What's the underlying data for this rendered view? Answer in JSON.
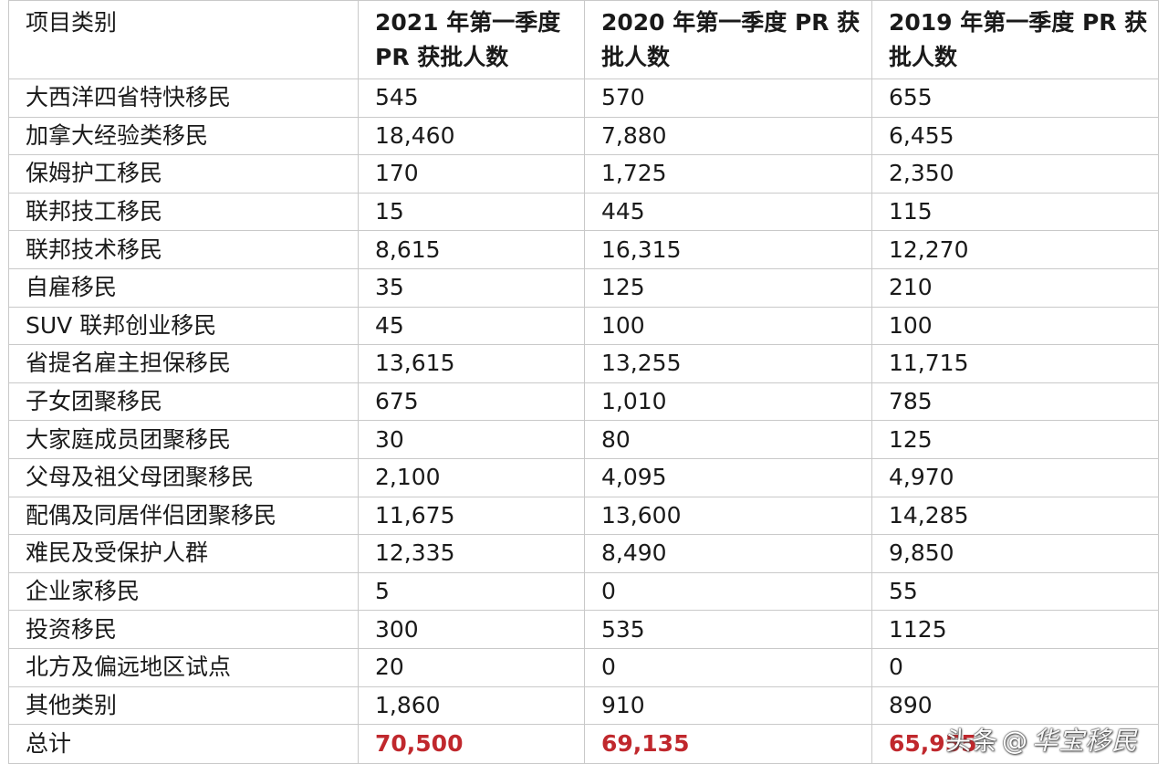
{
  "table": {
    "headers": [
      "项目类别",
      "2021 年第一季度 PR 获批人数",
      "2020 年第一季度 PR 获批人数",
      "2019 年第一季度 PR 获批人数"
    ],
    "rows": [
      [
        "大西洋四省特快移民",
        "545",
        "570",
        "655"
      ],
      [
        "加拿大经验类移民",
        "18,460",
        "7,880",
        "6,455"
      ],
      [
        "保姆护工移民",
        "170",
        "1,725",
        "2,350"
      ],
      [
        "联邦技工移民",
        "15",
        "445",
        "115"
      ],
      [
        "联邦技术移民",
        "8,615",
        "16,315",
        "12,270"
      ],
      [
        "自雇移民",
        "35",
        "125",
        "210"
      ],
      [
        "SUV 联邦创业移民",
        "45",
        "100",
        "100"
      ],
      [
        "省提名雇主担保移民",
        "13,615",
        "13,255",
        "11,715"
      ],
      [
        "子女团聚移民",
        "675",
        "1,010",
        "785"
      ],
      [
        "大家庭成员团聚移民",
        "30",
        "80",
        "125"
      ],
      [
        "父母及祖父母团聚移民",
        "2,100",
        "4,095",
        "4,970"
      ],
      [
        "配偶及同居伴侣团聚移民",
        "11,675",
        "13,600",
        "14,285"
      ],
      [
        "难民及受保护人群",
        "12,335",
        "8,490",
        "9,850"
      ],
      [
        "企业家移民",
        "5",
        "0",
        "55"
      ],
      [
        "投资移民",
        "300",
        "535",
        "1125"
      ],
      [
        "北方及偏远地区试点",
        "20",
        "0",
        "0"
      ],
      [
        "其他类别",
        "1,860",
        "910",
        "890"
      ]
    ],
    "total": [
      "总计",
      "70,500",
      "69,135",
      "65,955"
    ],
    "total_color": "#c0282d"
  },
  "watermark": {
    "platform": "头条",
    "at": "@",
    "brand": "华宝移民"
  }
}
